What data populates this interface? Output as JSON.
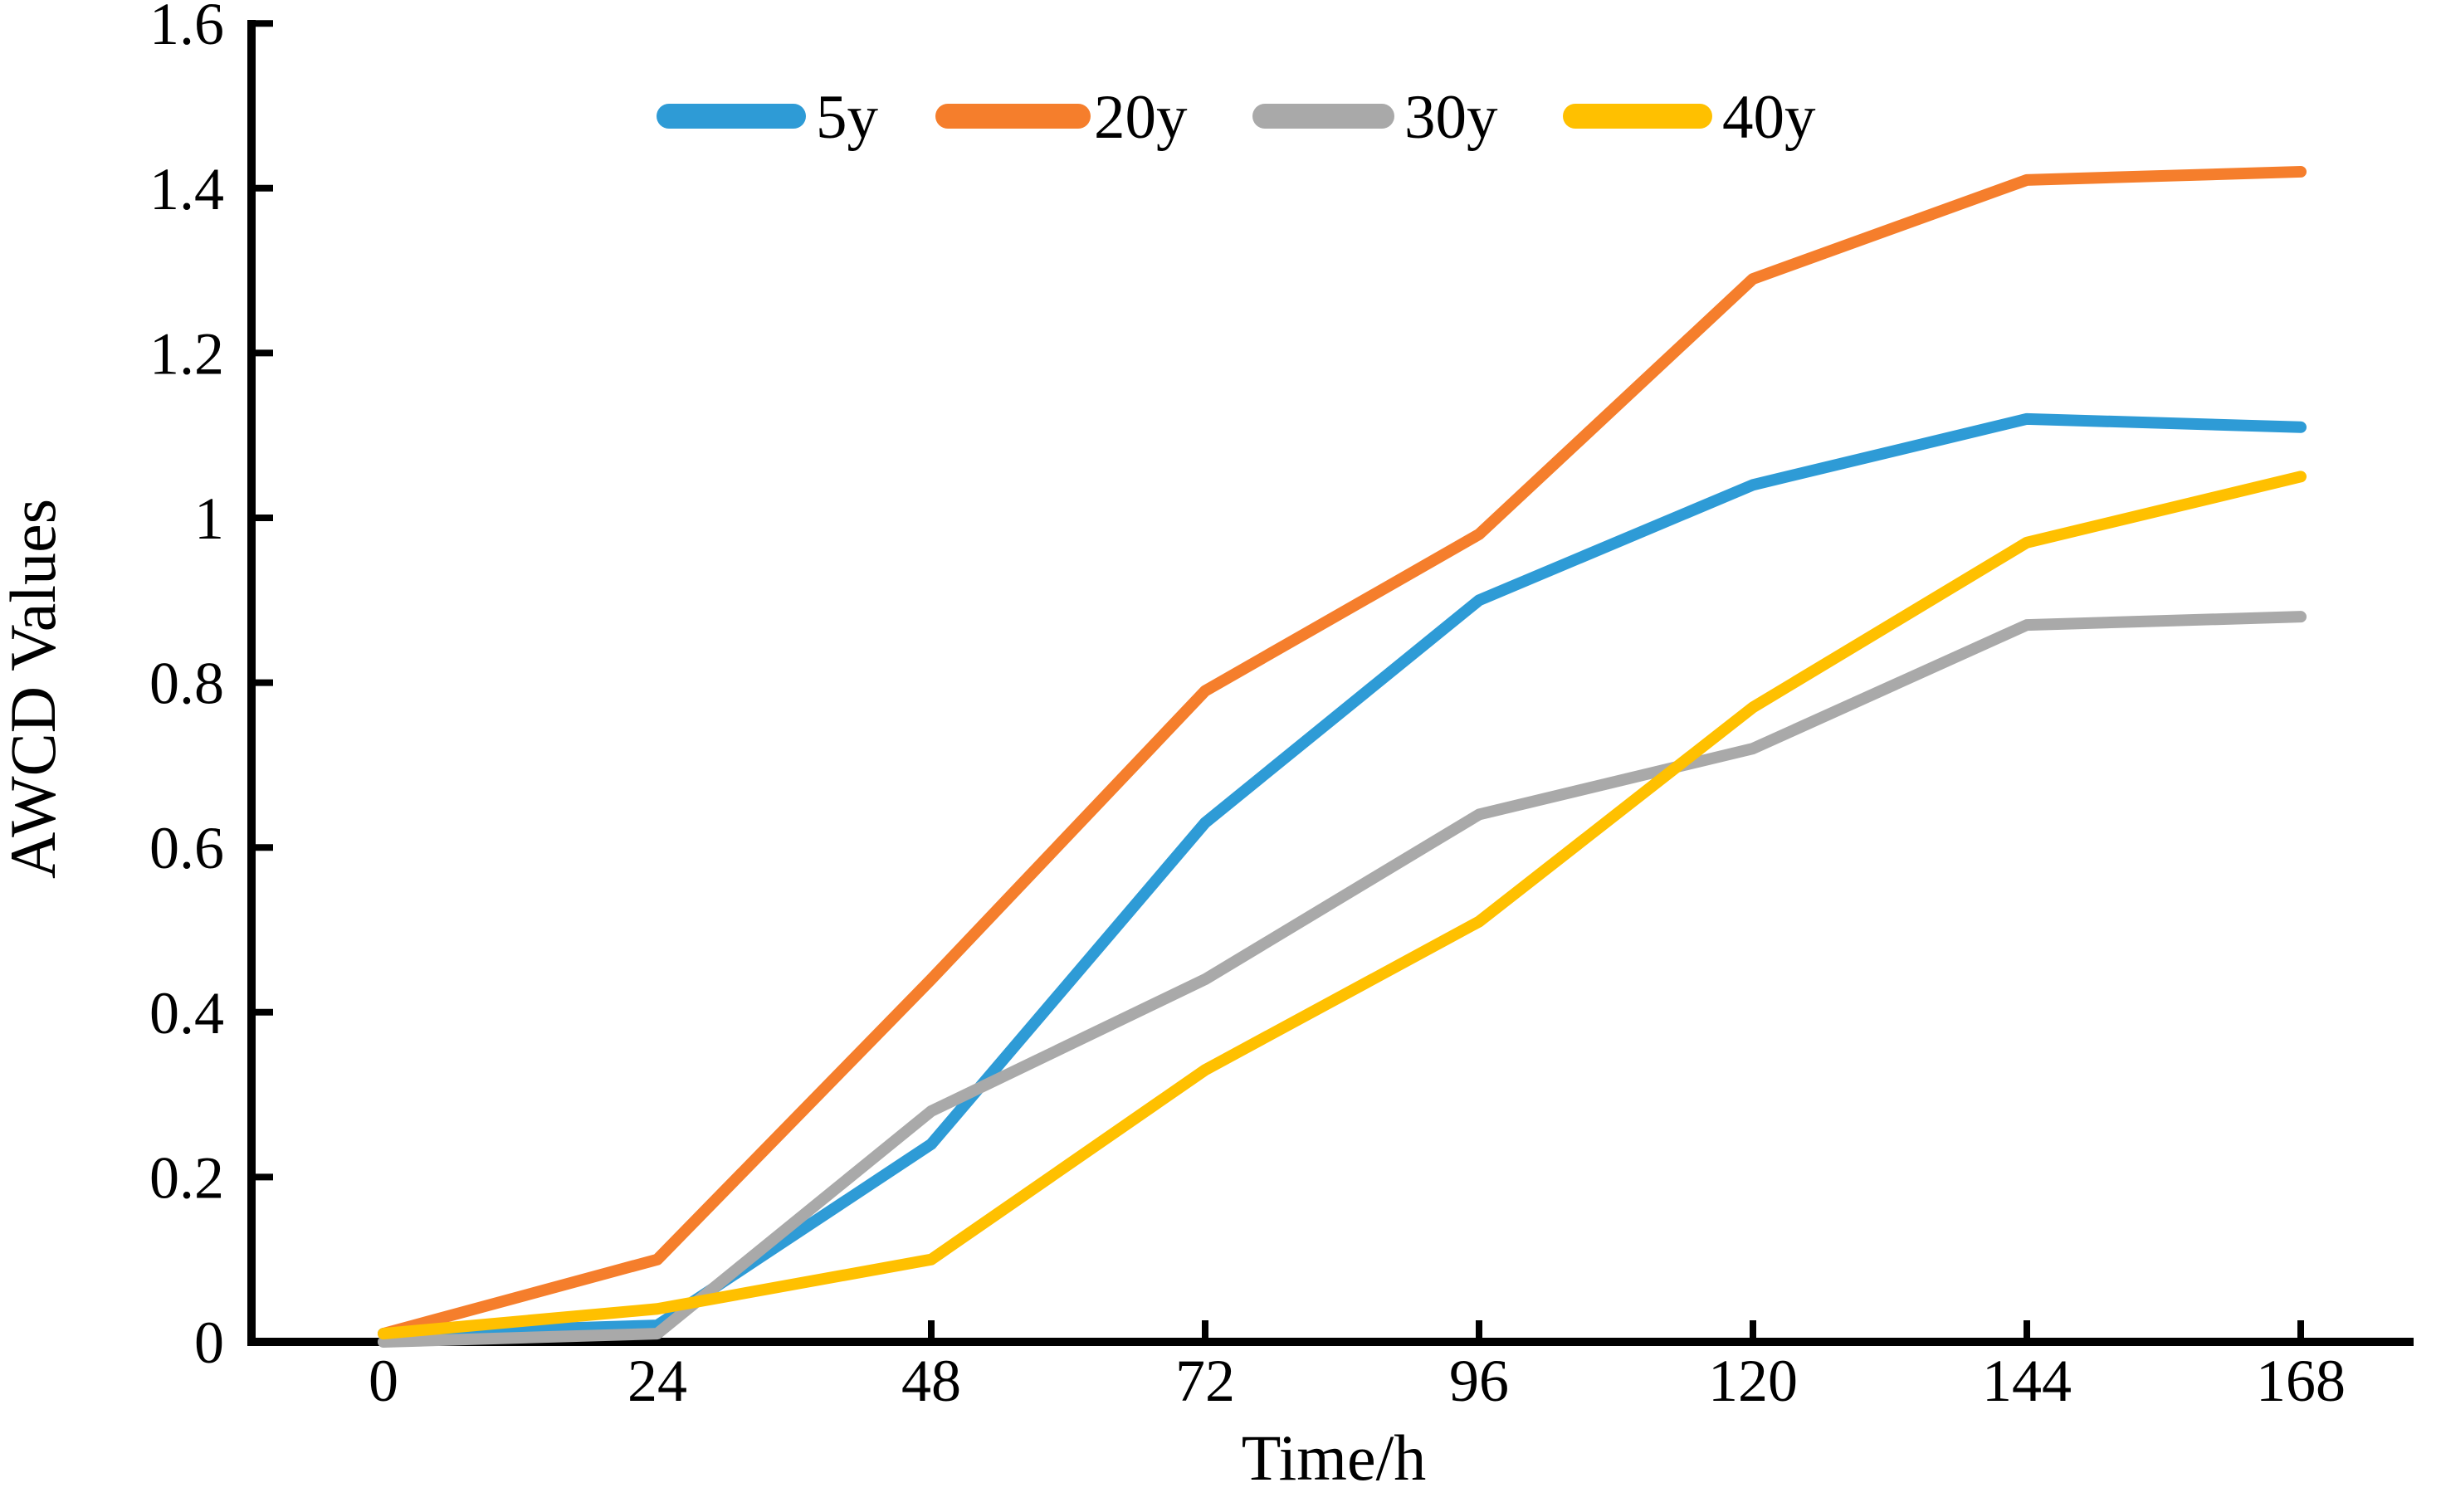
{
  "figure": {
    "background": "#ffffff",
    "axis_color": "#000000"
  },
  "chart_data": {
    "type": "line",
    "title": "",
    "xlabel": "Time/h",
    "ylabel": "AWCD Values",
    "x": [
      0,
      24,
      48,
      72,
      96,
      120,
      144,
      168
    ],
    "x_tick_labels": [
      "0",
      "24",
      "48",
      "72",
      "96",
      "120",
      "144",
      "168"
    ],
    "y_ticks": [
      0,
      0.2,
      0.4,
      0.6,
      0.8,
      1,
      1.2,
      1.4,
      1.6
    ],
    "y_tick_labels": [
      "0",
      "0.2",
      "0.4",
      "0.6",
      "0.8",
      "1",
      "1.2",
      "1.4",
      "1.6"
    ],
    "xlim": [
      0,
      168
    ],
    "ylim": [
      0,
      1.6
    ],
    "grid": false,
    "legend_position": "top-center",
    "series": [
      {
        "name": "5y",
        "color": "#2E9BD6",
        "values": [
          0.01,
          0.02,
          0.24,
          0.63,
          0.9,
          1.04,
          1.12,
          1.11
        ]
      },
      {
        "name": "20y",
        "color": "#F57E2C",
        "values": [
          0.01,
          0.1,
          0.44,
          0.79,
          0.98,
          1.29,
          1.41,
          1.42
        ]
      },
      {
        "name": "30y",
        "color": "#A9A9A9",
        "values": [
          0.0,
          0.01,
          0.28,
          0.44,
          0.64,
          0.72,
          0.87,
          0.88
        ]
      },
      {
        "name": "40y",
        "color": "#FFC000",
        "values": [
          0.01,
          0.04,
          0.1,
          0.33,
          0.51,
          0.77,
          0.97,
          1.05
        ]
      }
    ]
  }
}
